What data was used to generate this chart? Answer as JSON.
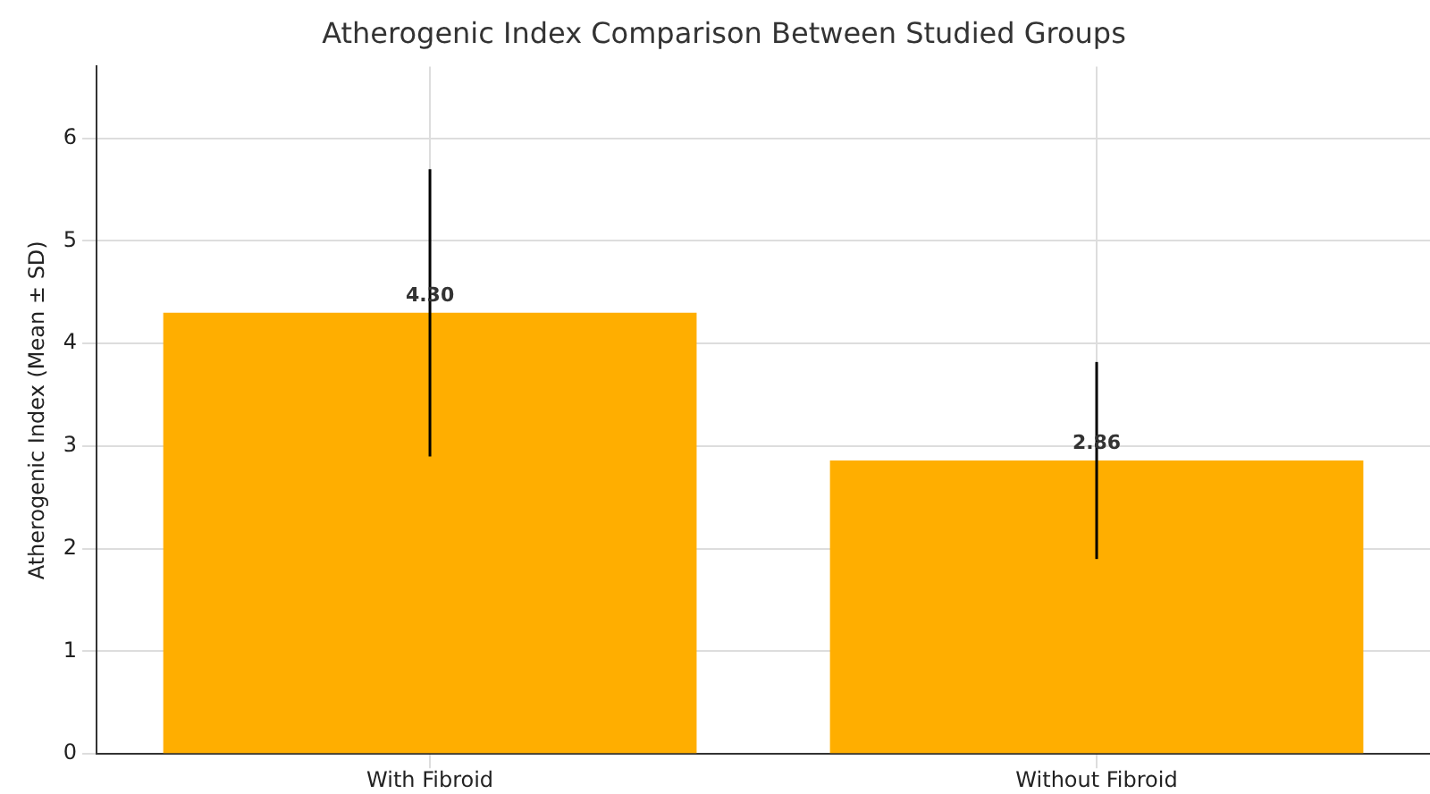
{
  "chart_data": {
    "type": "bar",
    "title": "Atherogenic Index Comparison Between Studied Groups",
    "ylabel": "Atherogenic Index (Mean ± SD)",
    "categories": [
      "With Fibroid",
      "Without Fibroid"
    ],
    "values": [
      4.3,
      2.86
    ],
    "errors": [
      1.4,
      0.96
    ],
    "color": "#ffae00",
    "value_labels": [
      "4.30",
      "2.86"
    ],
    "ylim": [
      0,
      6.7
    ],
    "yticks": [
      0,
      1,
      2,
      3,
      4,
      5,
      6
    ],
    "grid": true,
    "legend": false
  }
}
